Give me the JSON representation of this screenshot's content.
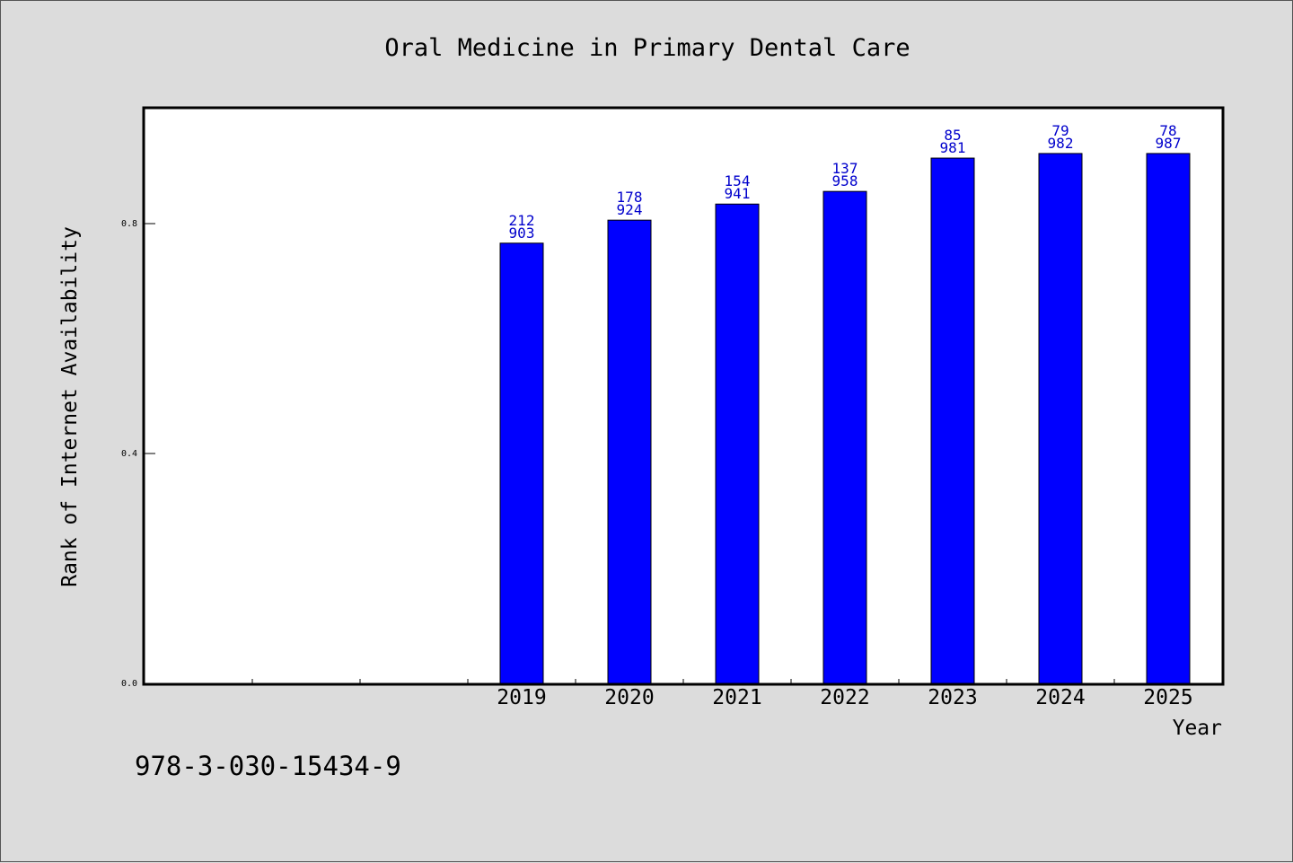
{
  "chart_data": {
    "type": "bar",
    "title": "Oral Medicine in Primary Dental Care",
    "xlabel": "Year",
    "ylabel": "Rank of Internet Availability",
    "ylim": [
      0,
      1.0
    ],
    "yticks": [
      "0.0",
      "0.4",
      "0.8"
    ],
    "categories": [
      "",
      "",
      "",
      "2019",
      "2020",
      "2021",
      "2022",
      "2023",
      "2024",
      "2025"
    ],
    "values": [
      null,
      null,
      null,
      0.766,
      0.806,
      0.834,
      0.856,
      0.914,
      0.922,
      0.922
    ],
    "label_top": [
      "",
      "",
      "",
      "212",
      "178",
      "154",
      "137",
      "85",
      "79",
      "78"
    ],
    "label_bottom": [
      "",
      "",
      "",
      "903",
      "924",
      "941",
      "958",
      "981",
      "982",
      "987"
    ],
    "bar_color": "#0000ff",
    "label_color": "#0000cc",
    "grid": false
  },
  "footnote": "978-3-030-15434-9"
}
